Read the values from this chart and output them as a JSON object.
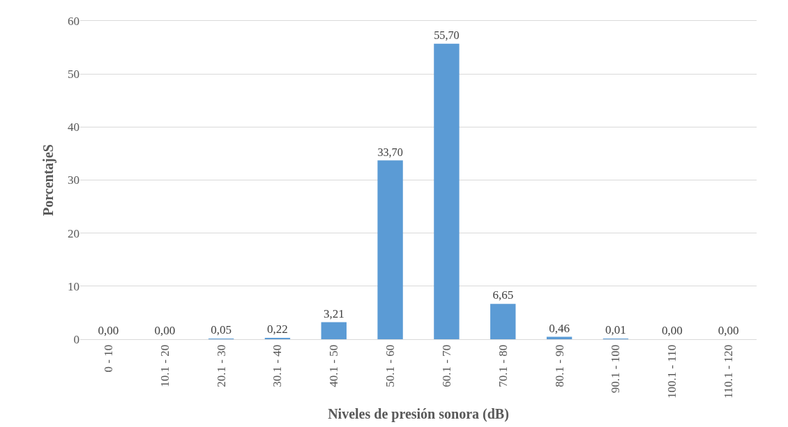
{
  "chart_data": {
    "type": "bar",
    "xlabel": "Niveles de presión sonora (dB)",
    "ylabel": "PorcentajeS",
    "categories": [
      "0 - 10",
      "10.1 - 20",
      "20.1 - 30",
      "30.1 - 40",
      "40.1 - 50",
      "50.1 - 60",
      "60.1 - 70",
      "70.1 - 80",
      "80.1 - 90",
      "90.1 - 100",
      "100.1 - 110",
      "110.1 - 120"
    ],
    "values": [
      0,
      0,
      0.05,
      0.22,
      3.21,
      33.7,
      55.7,
      6.65,
      0.46,
      0.01,
      0,
      0
    ],
    "value_labels": [
      "0,00",
      "0,00",
      "0,05",
      "0,22",
      "3,21",
      "33,70",
      "55,70",
      "6,65",
      "0,46",
      "0,01",
      "0,00",
      "0,00"
    ],
    "color": "#5b9bd5",
    "ylim": [
      0,
      60
    ],
    "yticks": [
      0,
      10,
      20,
      30,
      40,
      50,
      60
    ],
    "grid": "y"
  }
}
